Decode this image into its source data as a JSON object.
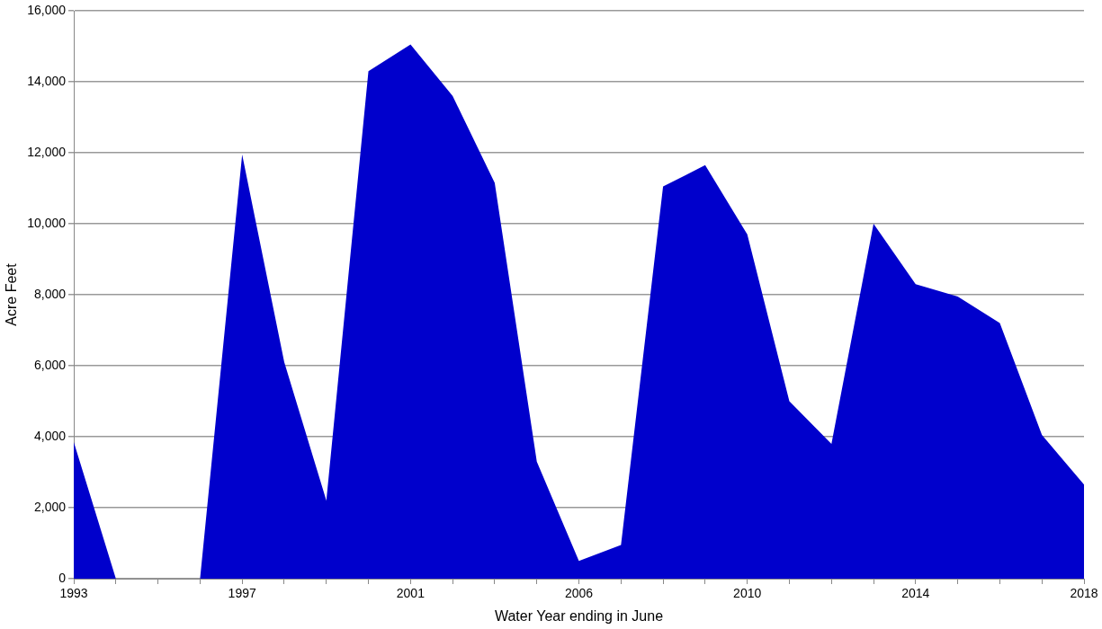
{
  "chart_data": {
    "type": "area",
    "xlabel": "Water Year ending in June",
    "ylabel": "Acre Feet",
    "categories": [
      "1993",
      null,
      null,
      null,
      "1997",
      null,
      null,
      null,
      "2001",
      null,
      null,
      null,
      "2006",
      null,
      null,
      null,
      "2010",
      null,
      null,
      null,
      "2014",
      null,
      null,
      null,
      "2018"
    ],
    "series": [
      {
        "color": "#0000cc",
        "values": [
          3850,
          0,
          0,
          0,
          11950,
          6100,
          2200,
          14300,
          15050,
          13600,
          11150,
          3300,
          500,
          950,
          11050,
          11650,
          9700,
          5000,
          3800,
          10000,
          8300,
          7950,
          7200,
          4050,
          2650
        ]
      }
    ],
    "ylim": [
      0,
      16000
    ],
    "yticks": [
      0,
      {
        "value": 2000,
        "label": "2,000"
      },
      {
        "value": 4000,
        "label": "4,000"
      },
      {
        "value": 6000,
        "label": "6,000"
      },
      {
        "value": 8000,
        "label": "8,000"
      },
      {
        "value": 10000,
        "label": "10,000"
      },
      {
        "value": 12000,
        "label": "12,000"
      },
      {
        "value": 14000,
        "label": "14,000"
      },
      {
        "value": 16000,
        "label": "16,000"
      }
    ],
    "grid": "y",
    "legend": false
  }
}
